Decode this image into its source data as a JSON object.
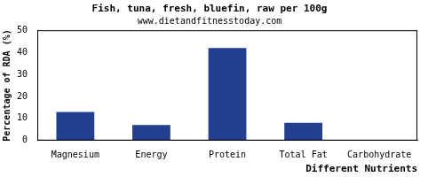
{
  "chart_data": {
    "type": "bar",
    "title": "Fish, tuna, fresh, bluefin, raw per 100g",
    "subtitle": "www.dietandfitnesstoday.com",
    "x_label": "Different Nutrients",
    "y_label": "Percentage of RDA (%)",
    "categories": [
      "Magnesium",
      "Energy",
      "Protein",
      "Total Fat",
      "Carbohydrate"
    ],
    "values": [
      13,
      7,
      42,
      8,
      0
    ],
    "color": "#233f8f",
    "ylim": [
      0,
      50
    ],
    "yticks": [
      0,
      10,
      20,
      30,
      40,
      50
    ],
    "grid": false
  }
}
